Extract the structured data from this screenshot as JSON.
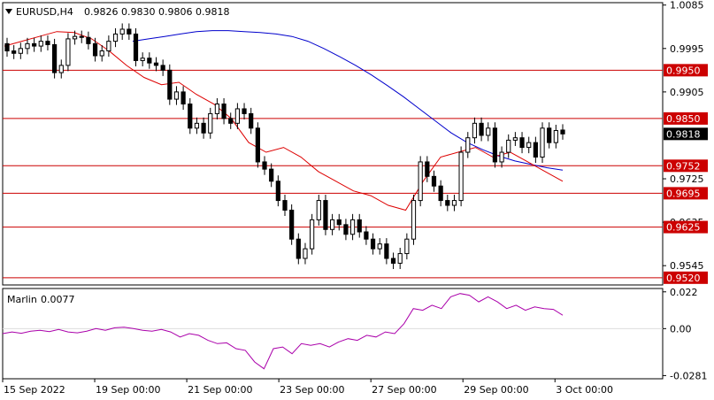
{
  "header": {
    "symbol": "EURUSD,H4",
    "ohlc": "0.9826 0.9830 0.9806 0.9818"
  },
  "colors": {
    "background": "#ffffff",
    "bull_candle": "#ffffff",
    "bear_candle": "#000000",
    "ma_slow": "#0000cc",
    "ma_fast": "#dd0000",
    "level_lines": "#cc0000",
    "oscillator": "#aa00aa",
    "current_price_box": "#000000"
  },
  "chart_data": [
    {
      "type": "candlestick",
      "title": "EURUSD,H4",
      "price_scale": {
        "ylim": [
          0.9505,
          1.009
        ]
      },
      "y_tick_labels": [
        "1.0085",
        "0.9995",
        "0.9905",
        "0.9725",
        "0.9635",
        "0.9545"
      ],
      "x_tick_labels": [
        "15 Sep 2022",
        "19 Sep 00:00",
        "21 Sep 00:00",
        "23 Sep 00:00",
        "27 Sep 00:00",
        "29 Sep 00:00",
        "3 Oct 00:00"
      ],
      "levels": [
        {
          "value": 0.995,
          "label": "0.9950"
        },
        {
          "value": 0.985,
          "label": "0.9850"
        },
        {
          "value": 0.9752,
          "label": "0.9752"
        },
        {
          "value": 0.9695,
          "label": "0.9695"
        },
        {
          "value": 0.9625,
          "label": "0.9625"
        },
        {
          "value": 0.952,
          "label": "0.9520"
        }
      ],
      "current_price": {
        "value": 0.9818,
        "label": "0.9818"
      },
      "close": [
        0.999,
        0.9985,
        0.9995,
        1.0005,
        1.0,
        1.001,
        1.0003,
        0.9945,
        0.996,
        1.0015,
        1.002,
        1.0018,
        1.0005,
        0.998,
        0.999,
        1.001,
        1.0025,
        1.0035,
        1.0025,
        0.997,
        0.9975,
        0.9965,
        0.996,
        0.995,
        0.989,
        0.9905,
        0.988,
        0.983,
        0.984,
        0.982,
        0.986,
        0.988,
        0.985,
        0.984,
        0.987,
        0.986,
        0.983,
        0.976,
        0.9745,
        0.972,
        0.968,
        0.966,
        0.96,
        0.956,
        0.958,
        0.964,
        0.968,
        0.962,
        0.964,
        0.963,
        0.961,
        0.964,
        0.9615,
        0.96,
        0.958,
        0.959,
        0.956,
        0.955,
        0.957,
        0.96,
        0.968,
        0.976,
        0.973,
        0.971,
        0.968,
        0.967,
        0.968,
        0.978,
        0.981,
        0.984,
        0.9815,
        0.983,
        0.976,
        0.978,
        0.9805,
        0.981,
        0.979,
        0.98,
        0.977,
        0.983,
        0.98,
        0.9825,
        0.9818
      ],
      "open": [
        1.0005,
        0.999,
        0.9985,
        0.9995,
        1.0005,
        1.0,
        1.001,
        1.0003,
        0.9945,
        0.996,
        1.0015,
        1.002,
        1.0018,
        1.0005,
        0.998,
        0.999,
        1.001,
        1.0025,
        1.0035,
        1.0025,
        0.997,
        0.9975,
        0.9965,
        0.996,
        0.995,
        0.989,
        0.9905,
        0.988,
        0.983,
        0.984,
        0.982,
        0.986,
        0.988,
        0.985,
        0.984,
        0.987,
        0.986,
        0.983,
        0.976,
        0.9745,
        0.972,
        0.968,
        0.966,
        0.96,
        0.956,
        0.958,
        0.964,
        0.968,
        0.962,
        0.964,
        0.963,
        0.961,
        0.964,
        0.9615,
        0.96,
        0.958,
        0.959,
        0.956,
        0.955,
        0.957,
        0.96,
        0.968,
        0.976,
        0.973,
        0.971,
        0.968,
        0.967,
        0.968,
        0.978,
        0.981,
        0.984,
        0.9815,
        0.983,
        0.976,
        0.978,
        0.9805,
        0.981,
        0.979,
        0.98,
        0.977,
        0.983,
        0.98,
        0.9826
      ],
      "ma_slow": [
        1.001,
        1.0015,
        1.002,
        1.0025,
        1.003,
        1.0032,
        1.0032,
        1.003,
        1.0028,
        1.0025,
        1.002,
        1.001,
        0.9995,
        0.9978,
        0.996,
        0.994,
        0.9918,
        0.9895,
        0.987,
        0.9845,
        0.982,
        0.98,
        0.9785,
        0.9772,
        0.9762,
        0.9755,
        0.9748,
        0.9743
      ],
      "ma_fast": [
        1.0,
        1.001,
        1.002,
        1.003,
        1.0028,
        1.0015,
        0.999,
        0.996,
        0.9935,
        0.992,
        0.9925,
        0.99,
        0.988,
        0.985,
        0.98,
        0.978,
        0.979,
        0.977,
        0.974,
        0.972,
        0.97,
        0.969,
        0.967,
        0.966,
        0.972,
        0.977,
        0.978,
        0.979,
        0.977,
        0.978,
        0.976,
        0.974,
        0.972
      ],
      "oscillator": {
        "name": "Marlin",
        "value_label": "0.0077",
        "ylim": [
          -0.03,
          0.024
        ],
        "y_tick_labels": [
          "0.022",
          "0.00",
          "-0.0281"
        ],
        "values": [
          -0.003,
          -0.002,
          -0.0028,
          -0.0015,
          -0.001,
          -0.0018,
          -0.0005,
          -0.002,
          -0.0025,
          -0.0015,
          0.0,
          -0.001,
          0.0005,
          0.0008,
          0.0,
          -0.001,
          -0.0015,
          -0.0005,
          -0.002,
          -0.005,
          -0.003,
          -0.004,
          -0.007,
          -0.009,
          -0.0085,
          -0.012,
          -0.013,
          -0.02,
          -0.024,
          -0.012,
          -0.011,
          -0.015,
          -0.009,
          -0.01,
          -0.009,
          -0.011,
          -0.008,
          -0.006,
          -0.007,
          -0.004,
          -0.005,
          -0.002,
          -0.003,
          0.003,
          0.012,
          0.011,
          0.014,
          0.012,
          0.019,
          0.021,
          0.02,
          0.016,
          0.019,
          0.016,
          0.012,
          0.014,
          0.011,
          0.013,
          0.012,
          0.0115,
          0.008
        ]
      }
    }
  ]
}
